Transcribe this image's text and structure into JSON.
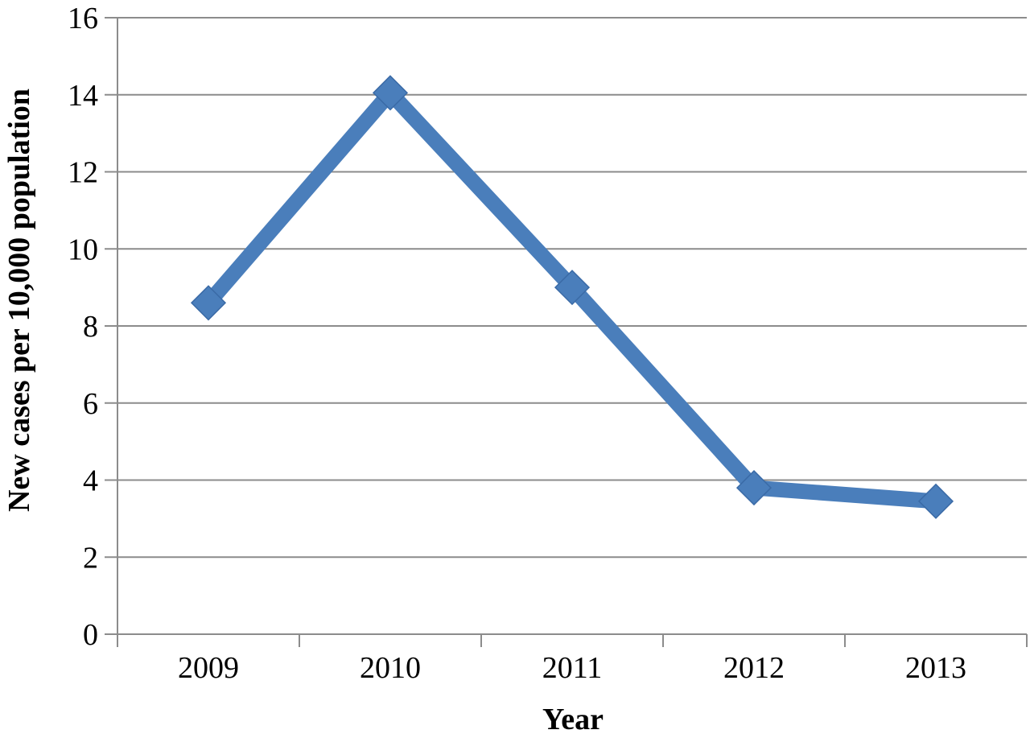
{
  "chart_data": {
    "type": "line",
    "title": "",
    "xlabel": "Year",
    "ylabel": "New cases per 10,000 population",
    "categories": [
      "2009",
      "2010",
      "2011",
      "2012",
      "2013"
    ],
    "series": [
      {
        "values": [
          8.6,
          14.05,
          9.0,
          3.8,
          3.45
        ]
      }
    ],
    "ylim": [
      0,
      16
    ],
    "yticks": [
      "0",
      "2",
      "4",
      "6",
      "8",
      "10",
      "12",
      "14",
      "16"
    ],
    "grid": true,
    "legend": "none",
    "marker": "diamond",
    "line_color": "#4a7ebb"
  }
}
